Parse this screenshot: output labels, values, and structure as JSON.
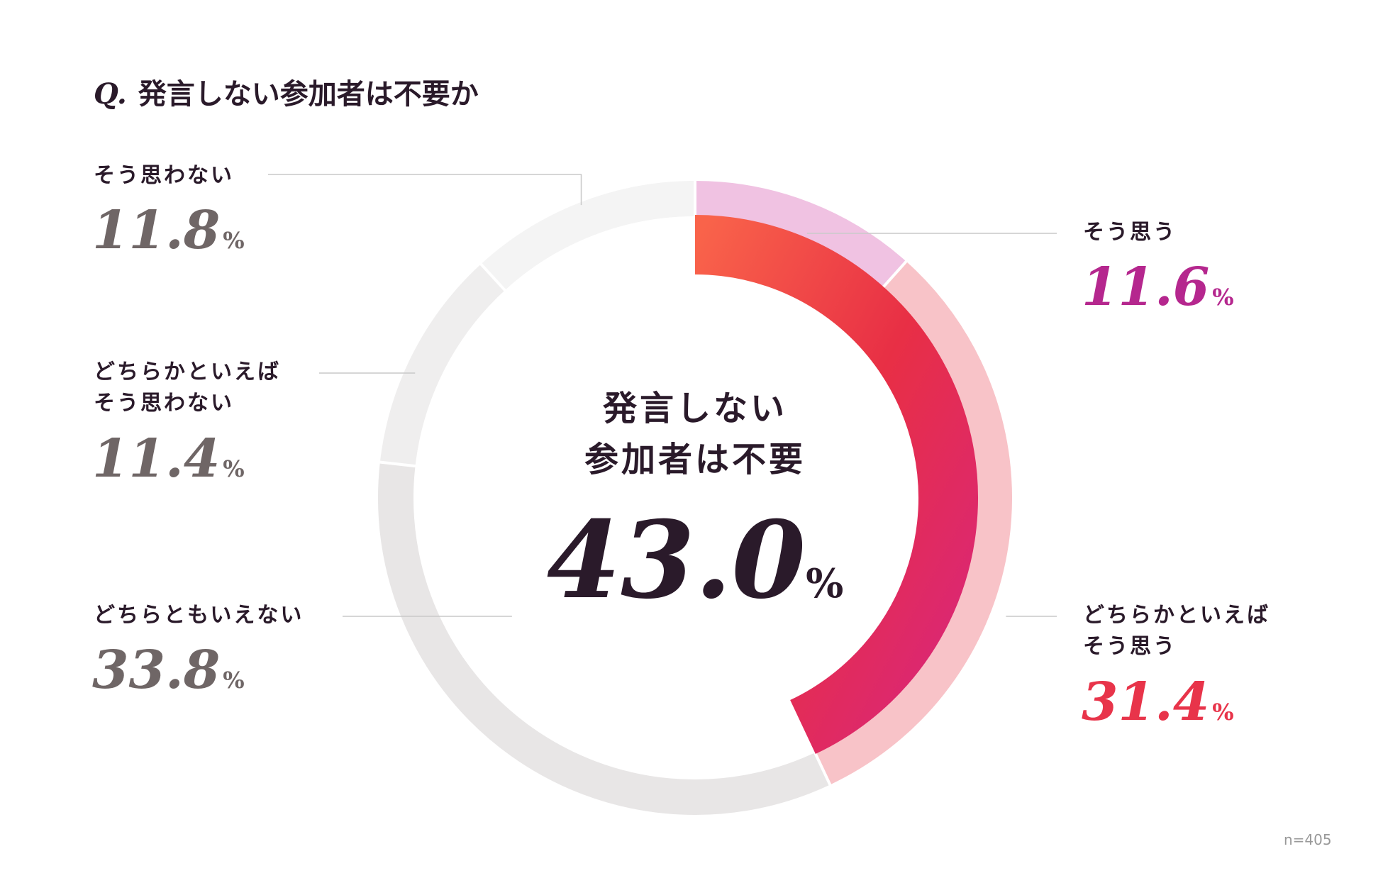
{
  "title": {
    "q": "Q.",
    "text": "発言しない参加者は不要か"
  },
  "center": {
    "line1": "発言しない",
    "line2": "参加者は不要",
    "value": "43.0",
    "pct": "%"
  },
  "note": "n=405",
  "chart_data": {
    "type": "pie",
    "title": "発言しない参加者は不要か",
    "unit": "%",
    "center_total": 43.0,
    "slices": [
      {
        "label": "そう思う",
        "value": 11.6,
        "display": "11.6",
        "color": "#b5278e",
        "ring_color": "#f0c2e2"
      },
      {
        "label": "どちらかといえば\nそう思う",
        "value": 31.4,
        "display": "31.4",
        "color": "#e8344a",
        "ring_color": "#f8c3c8"
      },
      {
        "label": "どちらともいえない",
        "value": 33.8,
        "display": "33.8",
        "color": "#6f6666",
        "ring_color": "#e8e6e6"
      },
      {
        "label": "どちらかといえば\nそう思わない",
        "value": 11.4,
        "display": "11.4",
        "color": "#6f6666",
        "ring_color": "#efeeee"
      },
      {
        "label": "そう思わない",
        "value": 11.8,
        "display": "11.8",
        "color": "#6f6666",
        "ring_color": "#f4f4f4"
      }
    ],
    "inner_arc_colors": [
      "#f9634a",
      "#e82f45",
      "#d9267a"
    ]
  }
}
